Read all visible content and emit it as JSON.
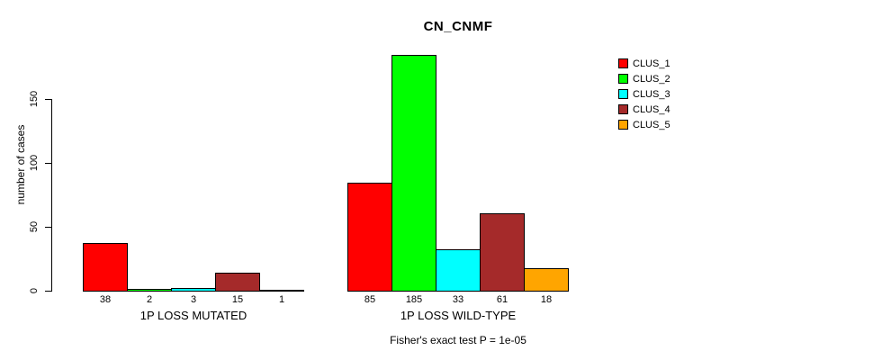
{
  "chart_data": {
    "type": "bar",
    "title": "CN_CNMF",
    "ylabel": "number of cases",
    "xlabel": "",
    "ylim": [
      0,
      190
    ],
    "yticks": [
      0,
      50,
      100,
      150
    ],
    "grid": false,
    "legend_position": "right",
    "categories": [
      "1P LOSS MUTATED",
      "1P LOSS WILD-TYPE"
    ],
    "series": [
      {
        "name": "CLUS_1",
        "color": "#FF0000",
        "values": [
          38,
          85
        ]
      },
      {
        "name": "CLUS_2",
        "color": "#00FF00",
        "values": [
          2,
          185
        ]
      },
      {
        "name": "CLUS_3",
        "color": "#00FFFF",
        "values": [
          3,
          33
        ]
      },
      {
        "name": "CLUS_4",
        "color": "#A52A2A",
        "values": [
          15,
          61
        ]
      },
      {
        "name": "CLUS_5",
        "color": "#FFA500",
        "values": [
          1,
          18
        ]
      }
    ],
    "bar_value_labels_shown": true,
    "annotation": "Fisher's exact test P = 1e-05"
  }
}
